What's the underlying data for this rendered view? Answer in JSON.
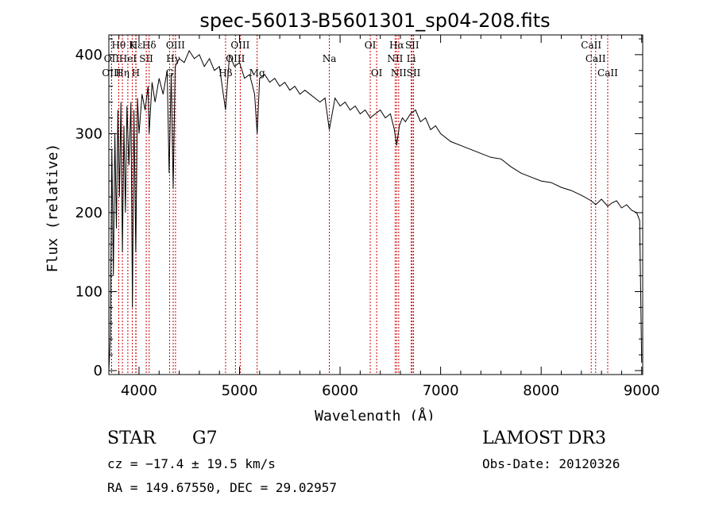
{
  "chart_data": {
    "type": "line",
    "title": "spec-56013-B5601301_sp04-208.fits",
    "xlabel": "Wavelength (Å)",
    "ylabel": "Flux (relative)",
    "xlim": [
      3700,
      9010
    ],
    "ylim": [
      -5,
      425
    ],
    "xticks": [
      4000,
      5000,
      6000,
      7000,
      8000,
      9000
    ],
    "yticks": [
      0,
      100,
      200,
      300,
      400
    ],
    "series": [
      {
        "name": "spectrum",
        "x": [
          3700,
          3715,
          3730,
          3745,
          3760,
          3775,
          3790,
          3805,
          3820,
          3835,
          3850,
          3865,
          3880,
          3900,
          3920,
          3935,
          3950,
          3968,
          3985,
          4000,
          4030,
          4060,
          4090,
          4101,
          4130,
          4160,
          4200,
          4240,
          4280,
          4300,
          4320,
          4340,
          4360,
          4400,
          4450,
          4500,
          4550,
          4600,
          4650,
          4700,
          4750,
          4800,
          4861,
          4900,
          4950,
          5000,
          5050,
          5100,
          5150,
          5175,
          5200,
          5250,
          5300,
          5350,
          5400,
          5450,
          5500,
          5550,
          5600,
          5650,
          5700,
          5750,
          5800,
          5850,
          5893,
          5950,
          6000,
          6050,
          6100,
          6150,
          6200,
          6250,
          6300,
          6350,
          6400,
          6450,
          6500,
          6540,
          6563,
          6590,
          6620,
          6650,
          6700,
          6750,
          6800,
          6850,
          6900,
          6950,
          7000,
          7100,
          7200,
          7300,
          7400,
          7500,
          7600,
          7700,
          7800,
          7900,
          8000,
          8100,
          8200,
          8300,
          8400,
          8498,
          8542,
          8600,
          8662,
          8700,
          8750,
          8800,
          8850,
          8900,
          8950,
          8980,
          9000
        ],
        "values": [
          0,
          40,
          280,
          120,
          300,
          180,
          330,
          220,
          340,
          150,
          310,
          200,
          335,
          260,
          340,
          80,
          330,
          150,
          345,
          300,
          350,
          330,
          360,
          300,
          365,
          340,
          370,
          350,
          380,
          250,
          375,
          230,
          385,
          395,
          390,
          405,
          395,
          400,
          385,
          395,
          380,
          385,
          330,
          400,
          385,
          390,
          370,
          375,
          350,
          300,
          370,
          375,
          365,
          370,
          360,
          365,
          355,
          360,
          350,
          355,
          350,
          345,
          340,
          345,
          305,
          345,
          335,
          340,
          330,
          335,
          325,
          330,
          320,
          325,
          330,
          320,
          325,
          305,
          285,
          310,
          320,
          315,
          325,
          330,
          315,
          320,
          305,
          310,
          300,
          290,
          285,
          280,
          275,
          270,
          268,
          258,
          250,
          245,
          240,
          238,
          232,
          228,
          222,
          215,
          210,
          217,
          208,
          212,
          215,
          206,
          210,
          203,
          200,
          190,
          10
        ]
      }
    ],
    "spectral_lines": [
      {
        "label": "Hθ",
        "wavelength": 3798,
        "row": 0
      },
      {
        "label": "K",
        "wavelength": 3934,
        "row": 0
      },
      {
        "label": "Hδ",
        "wavelength": 4101,
        "row": 0
      },
      {
        "label": "OIII",
        "wavelength": 4363,
        "row": 0
      },
      {
        "label": "OIII",
        "wavelength": 5007,
        "row": 0
      },
      {
        "label": "Na",
        "wavelength": 5893,
        "row": 1
      },
      {
        "label": "OI",
        "wavelength": 6300,
        "row": 0
      },
      {
        "label": "Hα",
        "wavelength": 6563,
        "row": 0
      },
      {
        "label": "SII",
        "wavelength": 6717,
        "row": 0
      },
      {
        "label": "CaII",
        "wavelength": 8498,
        "row": 0
      },
      {
        "label": "OII",
        "wavelength": 3727,
        "row": 1
      },
      {
        "label": "HeI",
        "wavelength": 3889,
        "row": 1
      },
      {
        "label": "SII",
        "wavelength": 4072,
        "row": 1
      },
      {
        "label": "Hγ",
        "wavelength": 4340,
        "row": 1
      },
      {
        "label": "OIII",
        "wavelength": 4959,
        "row": 1
      },
      {
        "label": "NII",
        "wavelength": 6548,
        "row": 1
      },
      {
        "label": "Li",
        "wavelength": 6708,
        "row": 1
      },
      {
        "label": "CaII",
        "wavelength": 8542,
        "row": 1
      },
      {
        "label": "OIII",
        "wavelength": 3727,
        "row": 2
      },
      {
        "label": "Hη",
        "wavelength": 3835,
        "row": 2
      },
      {
        "label": "H",
        "wavelength": 3968,
        "row": 2
      },
      {
        "label": "G",
        "wavelength": 4304,
        "row": 2
      },
      {
        "label": "Hβ",
        "wavelength": 4861,
        "row": 2
      },
      {
        "label": "Mg",
        "wavelength": 5175,
        "row": 2
      },
      {
        "label": "OI",
        "wavelength": 6364,
        "row": 2
      },
      {
        "label": "NII",
        "wavelength": 6583,
        "row": 2
      },
      {
        "label": "SII",
        "wavelength": 6731,
        "row": 2
      },
      {
        "label": "CaII",
        "wavelength": 8662,
        "row": 2
      },
      {
        "label": "Hε",
        "wavelength": 3970,
        "row": 0
      }
    ]
  },
  "info": {
    "object_class": "STAR",
    "subclass": "G7",
    "survey": "LAMOST DR3",
    "redshift": "cz = −17.4 ± 19.5 km/s",
    "obs_date": "Obs-Date: 20120326",
    "coords": "RA = 149.67550, DEC =  29.02957"
  },
  "colors": {
    "line_marker": "#cc0000",
    "spectrum": "#000000"
  }
}
